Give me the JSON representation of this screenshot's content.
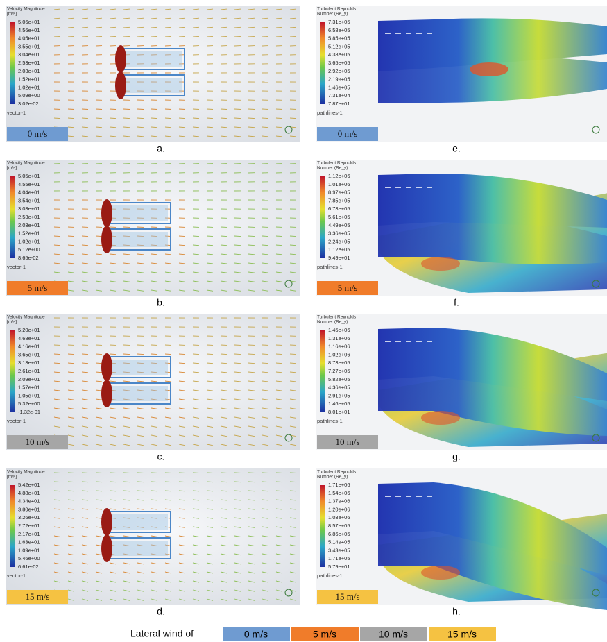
{
  "panels": [
    {
      "label": "a.",
      "wind": "0 m/s",
      "wind_color": "#6f9bd1",
      "title": [
        "Velocity Magnitude",
        "[m/s]"
      ],
      "name": "vector-1",
      "scale": [
        "5.06e+01",
        "4.56e+01",
        "4.05e+01",
        "3.55e+01",
        "3.04e+01",
        "2.53e+01",
        "2.03e+01",
        "1.52e+01",
        "1.02e+01",
        "5.09e+00",
        "3.02e-02"
      ]
    },
    {
      "label": "b.",
      "wind": "5 m/s",
      "wind_color": "#f07c2a",
      "title": [
        "Velocity Magnitude",
        "[m/s]"
      ],
      "name": "vector-1",
      "scale": [
        "5.05e+01",
        "4.55e+01",
        "4.04e+01",
        "3.54e+01",
        "3.03e+01",
        "2.53e+01",
        "2.03e+01",
        "1.52e+01",
        "1.02e+01",
        "5.12e+00",
        "8.65e-02"
      ]
    },
    {
      "label": "c.",
      "wind": "10 m/s",
      "wind_color": "#a6a6a6",
      "title": [
        "Velocity Magnitude",
        "[m/s]"
      ],
      "name": "vector-1",
      "scale": [
        "5.20e+01",
        "4.68e+01",
        "4.16e+01",
        "3.65e+01",
        "3.13e+01",
        "2.61e+01",
        "2.09e+01",
        "1.57e+01",
        "1.05e+01",
        "5.32e+00",
        "-1.32e-01"
      ]
    },
    {
      "label": "d.",
      "wind": "15 m/s",
      "wind_color": "#f5c242",
      "title": [
        "Velocity Magnitude",
        "[m/s]"
      ],
      "name": "vector-1",
      "scale": [
        "5.42e+01",
        "4.88e+01",
        "4.34e+01",
        "3.80e+01",
        "3.26e+01",
        "2.72e+01",
        "2.17e+01",
        "1.63e+01",
        "1.09e+01",
        "5.46e+00",
        "6.61e-02"
      ]
    },
    {
      "label": "e.",
      "wind": "0 m/s",
      "wind_color": "#6f9bd1",
      "title": [
        "Turbulent Reynolds",
        "Number (Re_y)"
      ],
      "name": "pathlines-1",
      "scale": [
        "7.31e+05",
        "6.58e+05",
        "5.85e+05",
        "5.12e+05",
        "4.38e+05",
        "3.65e+05",
        "2.92e+05",
        "2.19e+05",
        "1.46e+05",
        "7.31e+04",
        "7.87e+01"
      ]
    },
    {
      "label": "f.",
      "wind": "5 m/s",
      "wind_color": "#f07c2a",
      "title": [
        "Turbulent Reynolds",
        "Number (Re_y)"
      ],
      "name": "pathlines-1",
      "scale": [
        "1.12e+06",
        "1.01e+06",
        "8.97e+05",
        "7.85e+05",
        "6.73e+05",
        "5.61e+05",
        "4.49e+05",
        "3.36e+05",
        "2.24e+05",
        "1.12e+05",
        "9.49e+01"
      ]
    },
    {
      "label": "g.",
      "wind": "10 m/s",
      "wind_color": "#a6a6a6",
      "title": [
        "Turbulent Reynolds",
        "Number (Re_y)"
      ],
      "name": "pathlines-1",
      "scale": [
        "1.45e+06",
        "1.31e+06",
        "1.16e+06",
        "1.02e+06",
        "8.73e+05",
        "7.27e+05",
        "5.82e+05",
        "4.36e+05",
        "2.91e+05",
        "1.46e+05",
        "8.01e+01"
      ]
    },
    {
      "label": "h.",
      "wind": "15 m/s",
      "wind_color": "#f5c242",
      "title": [
        "Turbulent Reynolds",
        "Number (Re_y)"
      ],
      "name": "pathlines-1",
      "scale": [
        "1.71e+06",
        "1.54e+06",
        "1.37e+06",
        "1.20e+06",
        "1.03e+06",
        "8.57e+05",
        "6.86e+05",
        "5.14e+05",
        "3.43e+05",
        "1.71e+05",
        "5.79e+01"
      ]
    }
  ],
  "legend": {
    "title": "Lateral wind of",
    "items": [
      {
        "label": "0 m/s",
        "color": "#6f9bd1"
      },
      {
        "label": "5 m/s",
        "color": "#f07c2a"
      },
      {
        "label": "10 m/s",
        "color": "#a6a6a6"
      },
      {
        "label": "15 m/s",
        "color": "#f5c242"
      }
    ]
  }
}
